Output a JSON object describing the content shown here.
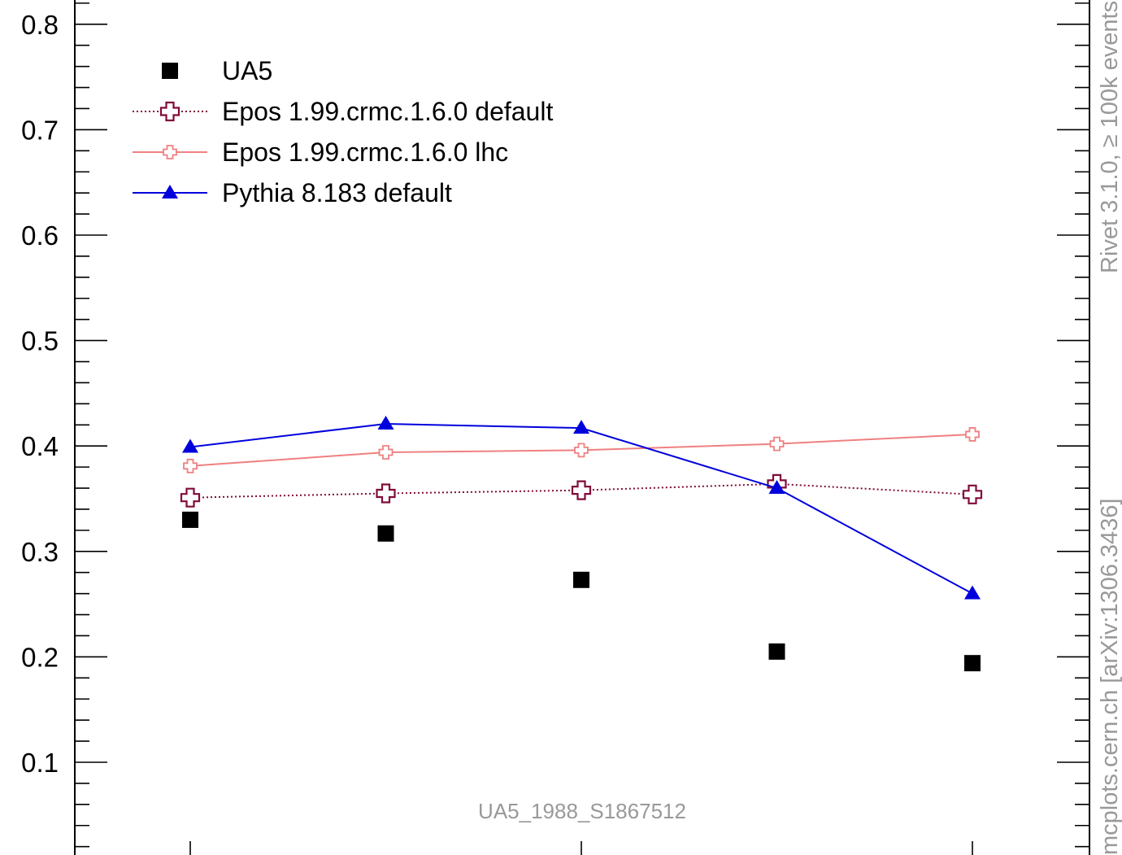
{
  "chart_data": {
    "type": "line",
    "title": "",
    "xlabel": "",
    "ylabel": "",
    "ylim": [
      0.02,
      0.82
    ],
    "y_ticks": [
      {
        "v": 0.8,
        "label": "0.8"
      },
      {
        "v": 0.7,
        "label": "0.7"
      },
      {
        "v": 0.6,
        "label": "0.6"
      },
      {
        "v": 0.5,
        "label": "0.5"
      },
      {
        "v": 0.4,
        "label": "0.4"
      },
      {
        "v": 0.3,
        "label": "0.3"
      },
      {
        "v": 0.2,
        "label": "0.2"
      },
      {
        "v": 0.1,
        "label": "0.1"
      }
    ],
    "grid": false,
    "legend_position": "top-left",
    "x": [
      1,
      2,
      3,
      4,
      5
    ],
    "series": [
      {
        "name": "UA5",
        "style": "markers",
        "marker": "square",
        "color": "#000000",
        "values": [
          0.33,
          0.317,
          0.273,
          0.205,
          0.194
        ]
      },
      {
        "name": "Epos 1.99.crmc.1.6.0 default",
        "style": "dotted",
        "marker": "hollow-cross",
        "color": "#7f0a3a",
        "values": [
          0.351,
          0.355,
          0.358,
          0.364,
          0.354
        ]
      },
      {
        "name": "Epos 1.99.crmc.1.6.0 lhc",
        "style": "solid",
        "marker": "hollow-cross-small",
        "color": "#f08080",
        "values": [
          0.381,
          0.394,
          0.396,
          0.402,
          0.411
        ]
      },
      {
        "name": "Pythia 8.183 default",
        "style": "solid",
        "marker": "triangle",
        "color": "#0000dd",
        "values": [
          0.399,
          0.421,
          0.417,
          0.36,
          0.26
        ]
      }
    ],
    "annotation": "UA5_1988_S1867512",
    "side_label_top": "Rivet 3.1.0, ≥ 100k events",
    "side_label_bottom": "mcplots.cern.ch [arXiv:1306.3436]"
  }
}
